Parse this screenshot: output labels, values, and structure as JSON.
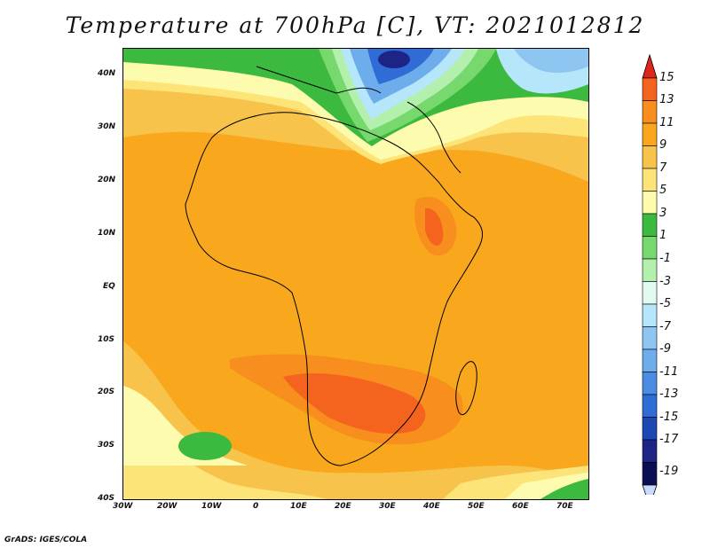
{
  "title": "Temperature at 700hPa [C], VT: 2021012812",
  "credit": "GrADS: IGES/COLA",
  "map": {
    "region": "Africa",
    "projection": "lat-lon",
    "lon_range": [
      -30,
      75
    ],
    "lat_range": [
      -40,
      45
    ],
    "lat_ticks": [
      "40N",
      "30N",
      "20N",
      "10N",
      "EQ",
      "10S",
      "20S",
      "30S",
      "40S"
    ],
    "lon_ticks": [
      "30W",
      "20W",
      "10W",
      "0",
      "10E",
      "20E",
      "30E",
      "40E",
      "50E",
      "60E",
      "70E"
    ]
  },
  "colorbar": {
    "labels": [
      "15",
      "13",
      "11",
      "9",
      "7",
      "5",
      "3",
      "1",
      "-1",
      "-3",
      "-5",
      "-7",
      "-9",
      "-11",
      "-13",
      "-15",
      "-17",
      "-19"
    ],
    "colors": [
      "#ee2a18",
      "#f5641f",
      "#f88e1e",
      "#f9a81e",
      "#f7c34a",
      "#fde479",
      "#fdfbad",
      "#3cba3f",
      "#77d96d",
      "#b3f0ad",
      "#e1fbf1",
      "#b5e6fa",
      "#8ec6f1",
      "#6eadec",
      "#4b8de3",
      "#2f6cd6",
      "#1b48b3",
      "#1c2486",
      "#0b0e54"
    ],
    "top_color": "#e0261a",
    "bottom_color": "#ccd9ff"
  }
}
